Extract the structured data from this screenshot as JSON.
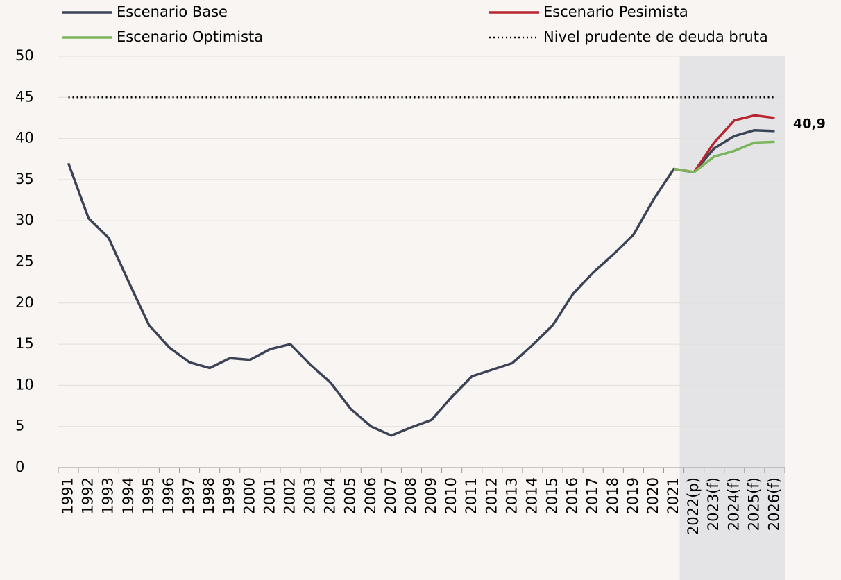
{
  "chart_data": {
    "type": "line",
    "categories": [
      "1991",
      "1992",
      "1993",
      "1994",
      "1995",
      "1996",
      "1997",
      "1998",
      "1999",
      "2000",
      "2001",
      "2002",
      "2003",
      "2004",
      "2005",
      "2006",
      "2007",
      "2008",
      "2009",
      "2010",
      "2011",
      "2012",
      "2013",
      "2014",
      "2015",
      "2016",
      "2017",
      "2018",
      "2019",
      "2020",
      "2021",
      "2022(p)",
      "2023(f)",
      "2024(f)",
      "2025(f)",
      "2026(f)"
    ],
    "series": [
      {
        "name": "Escenario Base",
        "color": "#3b4356",
        "style": "solid",
        "values": [
          37.0,
          30.3,
          27.9,
          22.5,
          17.3,
          14.6,
          12.8,
          12.1,
          13.3,
          13.1,
          14.4,
          15.0,
          12.5,
          10.3,
          7.1,
          5.0,
          3.9,
          4.9,
          5.8,
          8.6,
          11.1,
          11.9,
          12.7,
          14.9,
          17.3,
          21.1,
          23.7,
          25.9,
          28.3,
          32.6,
          36.3,
          35.9,
          38.8,
          40.3,
          41.0,
          40.9
        ],
        "value_labels": [
          null,
          null,
          null,
          null,
          null,
          null,
          null,
          null,
          null,
          null,
          null,
          null,
          null,
          null,
          null,
          null,
          null,
          null,
          null,
          null,
          null,
          null,
          null,
          null,
          null,
          null,
          null,
          null,
          null,
          null,
          null,
          null,
          null,
          null,
          null,
          "40,9"
        ]
      },
      {
        "name": "Escenario Pesimista",
        "color": "#b8252e",
        "style": "solid",
        "values": [
          null,
          null,
          null,
          null,
          null,
          null,
          null,
          null,
          null,
          null,
          null,
          null,
          null,
          null,
          null,
          null,
          null,
          null,
          null,
          null,
          null,
          null,
          null,
          null,
          null,
          null,
          null,
          null,
          null,
          null,
          36.3,
          35.9,
          39.5,
          42.2,
          42.8,
          42.5
        ]
      },
      {
        "name": "Escenario Optimista",
        "color": "#7ab55c",
        "style": "solid",
        "values": [
          null,
          null,
          null,
          null,
          null,
          null,
          null,
          null,
          null,
          null,
          null,
          null,
          null,
          null,
          null,
          null,
          null,
          null,
          null,
          null,
          null,
          null,
          null,
          null,
          null,
          null,
          null,
          null,
          null,
          null,
          36.3,
          35.9,
          37.8,
          38.5,
          39.5,
          39.6
        ]
      },
      {
        "name": "Nivel prudente de deuda bruta",
        "color": "#000000",
        "style": "dotted",
        "values": [
          45,
          45,
          45,
          45,
          45,
          45,
          45,
          45,
          45,
          45,
          45,
          45,
          45,
          45,
          45,
          45,
          45,
          45,
          45,
          45,
          45,
          45,
          45,
          45,
          45,
          45,
          45,
          45,
          45,
          45,
          45,
          45,
          45,
          45,
          45,
          45
        ]
      }
    ],
    "ylim": [
      0,
      50
    ],
    "yticks": [
      0,
      5,
      10,
      15,
      20,
      25,
      30,
      35,
      40,
      45,
      50
    ],
    "grid": true,
    "shade": {
      "start": "2022(p)",
      "end": "2026(f)",
      "color": "#e4e4e6"
    },
    "legend": "top"
  }
}
